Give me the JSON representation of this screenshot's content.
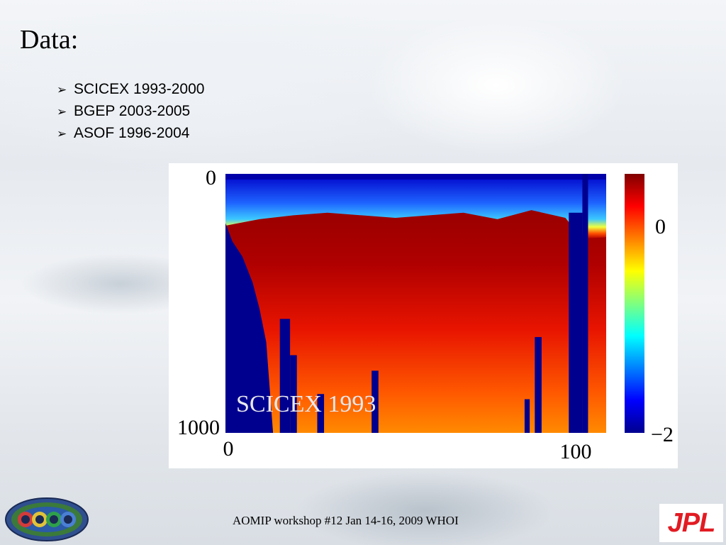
{
  "slide": {
    "title": "Data:",
    "bullets": [
      "SCICEX 1993-2000",
      "BGEP 2003-2005",
      "ASOF 1996-2004"
    ],
    "footer": "AOMIP workshop #12 Jan 14-16, 2009 WHOI",
    "logos": {
      "left": "ECCO",
      "right": "JPL"
    }
  },
  "chart_data": {
    "type": "heatmap",
    "title": "SCICEX 1993",
    "xlabel": "",
    "ylabel": "",
    "xlim": [
      0,
      112
    ],
    "ylim": [
      0,
      1000
    ],
    "y_inverted": true,
    "x_ticks": [
      "0",
      "100"
    ],
    "y_ticks": [
      "0",
      "1000"
    ],
    "colorbar": {
      "range": [
        -2,
        1.5
      ],
      "ticks": [
        "0",
        "−2"
      ],
      "colormap": "jet"
    },
    "surface_layer_depth_m": [
      [
        0,
        200
      ],
      [
        10,
        175
      ],
      [
        20,
        160
      ],
      [
        30,
        150
      ],
      [
        40,
        160
      ],
      [
        50,
        170
      ],
      [
        60,
        160
      ],
      [
        70,
        150
      ],
      [
        80,
        175
      ],
      [
        90,
        140
      ],
      [
        100,
        170
      ],
      [
        105,
        250
      ],
      [
        112,
        245
      ]
    ],
    "deep_cold_region_depth_m": [
      [
        0,
        190
      ],
      [
        2,
        260
      ],
      [
        5,
        320
      ],
      [
        8,
        420
      ],
      [
        10,
        520
      ],
      [
        12,
        650
      ],
      [
        14,
        1000
      ]
    ],
    "colors": {
      "cold": "#00008f",
      "warm": "#800000"
    }
  }
}
